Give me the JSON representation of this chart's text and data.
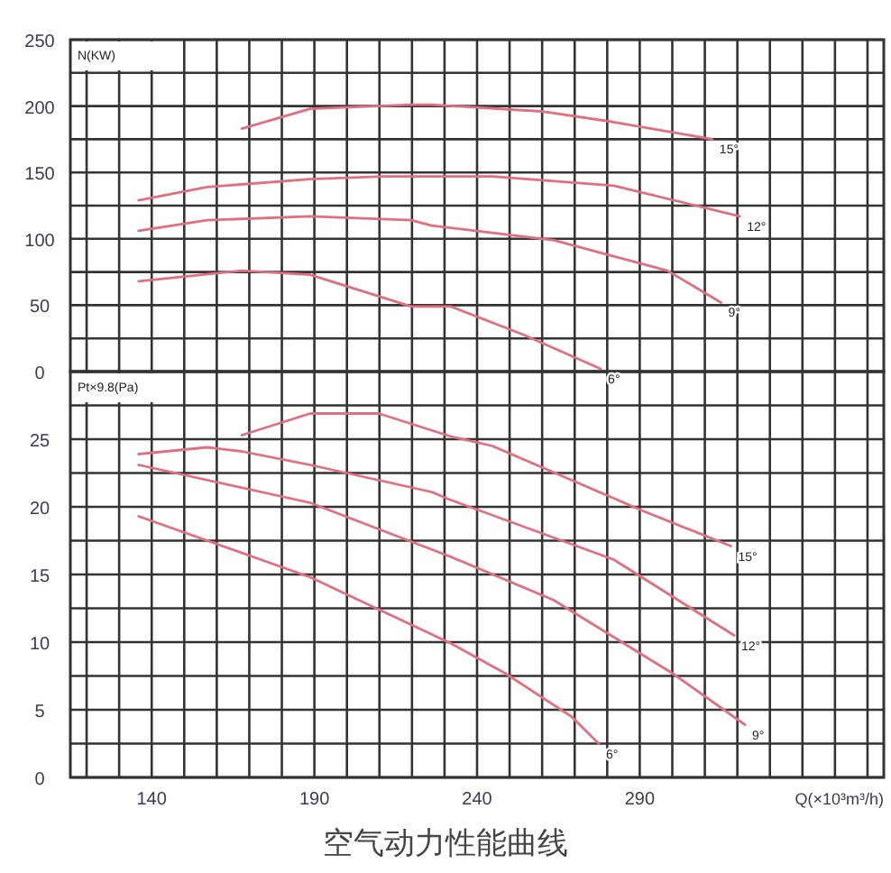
{
  "chart_data": [
    {
      "type": "line",
      "ylabel": "N(KW)",
      "xlim": [
        115,
        365
      ],
      "ylim": [
        0,
        250
      ],
      "grid": true,
      "tick_labels": "y",
      "xticks": [
        {
          "value": 120,
          "label": null
        },
        {
          "value": 130,
          "label": null
        },
        {
          "value": 140,
          "label": null
        },
        {
          "value": 150,
          "label": null
        },
        {
          "value": 160,
          "label": null
        },
        {
          "value": 170,
          "label": null
        },
        {
          "value": 180,
          "label": null
        },
        {
          "value": 190,
          "label": null
        },
        {
          "value": 200,
          "label": null
        },
        {
          "value": 210,
          "label": null
        },
        {
          "value": 220,
          "label": null
        },
        {
          "value": 230,
          "label": null
        },
        {
          "value": 240,
          "label": null
        },
        {
          "value": 250,
          "label": null
        },
        {
          "value": 260,
          "label": null
        },
        {
          "value": 270,
          "label": null
        },
        {
          "value": 280,
          "label": null
        },
        {
          "value": 290,
          "label": null
        },
        {
          "value": 300,
          "label": null
        },
        {
          "value": 310,
          "label": null
        },
        {
          "value": 320,
          "label": null
        },
        {
          "value": 330,
          "label": null
        },
        {
          "value": 340,
          "label": null
        },
        {
          "value": 350,
          "label": null
        },
        {
          "value": 360,
          "label": null
        }
      ],
      "yticks": [
        0,
        {
          "value": 25,
          "label": null
        },
        50,
        {
          "value": 75,
          "label": null
        },
        100,
        {
          "value": 125,
          "label": null
        },
        150,
        {
          "value": 175,
          "label": null
        },
        200,
        {
          "value": 225,
          "label": null
        },
        250
      ],
      "series": [
        {
          "name": "15°",
          "color": "#e07080",
          "x": [
            167.7,
            188.7,
            219.8,
            226,
            259.7,
            281.9,
            312.3
          ],
          "values": [
            183,
            198,
            201,
            201,
            196,
            188,
            175
          ]
        },
        {
          "name": "12°",
          "color": "#e07080",
          "x": [
            136,
            157,
            188.7,
            211,
            244.7,
            282,
            320.7
          ],
          "values": [
            129,
            139,
            145,
            147,
            147,
            140,
            117
          ]
        },
        {
          "name": "9°",
          "color": "#e07080",
          "x": [
            136,
            157,
            188.7,
            219.8,
            226,
            263.6,
            298.5,
            315
          ],
          "values": [
            106,
            114,
            117,
            114,
            110,
            99,
            76,
            52
          ]
        },
        {
          "name": "6°",
          "color": "#e07080",
          "x": [
            136,
            167.7,
            188.7,
            219.8,
            232,
            254,
            278
          ],
          "values": [
            68,
            76,
            73,
            49,
            49,
            28,
            2
          ]
        }
      ]
    },
    {
      "type": "line",
      "ylabel": "Pt×9.8(Pa)",
      "xlabel": "Q(×10³m³/h)",
      "title": "空气动力性能曲线",
      "xlim": [
        115,
        365
      ],
      "ylim": [
        0,
        30
      ],
      "grid": true,
      "xticks": [
        {
          "value": 120,
          "label": null
        },
        {
          "value": 130,
          "label": null
        },
        140,
        {
          "value": 150,
          "label": null
        },
        {
          "value": 160,
          "label": null
        },
        {
          "value": 170,
          "label": null
        },
        {
          "value": 180,
          "label": null
        },
        190,
        {
          "value": 200,
          "label": null
        },
        {
          "value": 210,
          "label": null
        },
        {
          "value": 220,
          "label": null
        },
        {
          "value": 230,
          "label": null
        },
        240,
        {
          "value": 250,
          "label": null
        },
        {
          "value": 260,
          "label": null
        },
        {
          "value": 270,
          "label": null
        },
        {
          "value": 280,
          "label": null
        },
        290,
        {
          "value": 300,
          "label": null
        },
        {
          "value": 310,
          "label": null
        },
        {
          "value": 320,
          "label": null
        },
        {
          "value": 330,
          "label": null
        },
        {
          "value": 340,
          "label": null
        },
        {
          "value": 350,
          "label": null
        },
        {
          "value": 360,
          "label": null
        }
      ],
      "yticks": [
        0,
        {
          "value": 2.5,
          "label": null
        },
        5,
        {
          "value": 7.5,
          "label": null
        },
        10,
        {
          "value": 12.5,
          "label": null
        },
        15,
        {
          "value": 17.5,
          "label": null
        },
        20,
        {
          "value": 22.5,
          "label": null
        },
        25,
        {
          "value": 27.5,
          "label": null
        },
        {
          "value": 30,
          "label": null
        }
      ],
      "series": [
        {
          "name": "15°",
          "color": "#e07080",
          "x": [
            167.7,
            188.7,
            209.8,
            232,
            244.7,
            291,
            318
          ],
          "values": [
            25.3,
            26.9,
            26.9,
            25.2,
            24.5,
            19.7,
            17.1
          ]
        },
        {
          "name": "12°",
          "color": "#e07080",
          "x": [
            136,
            157,
            167.7,
            188.7,
            226,
            232,
            282,
            319
          ],
          "values": [
            23.9,
            24.4,
            24.1,
            23.1,
            21.1,
            20.5,
            16.1,
            10.5
          ]
        },
        {
          "name": "9°",
          "color": "#e07080",
          "x": [
            136,
            188.7,
            232,
            263.6,
            300,
            322.3
          ],
          "values": [
            23.1,
            20.3,
            16.3,
            13.1,
            7.7,
            3.9
          ]
        },
        {
          "name": "6°",
          "color": "#e07080",
          "x": [
            136,
            188.7,
            232,
            248.6,
            269,
            277.4
          ],
          "values": [
            19.3,
            14.8,
            9.9,
            7.7,
            4.5,
            2.5
          ]
        }
      ]
    }
  ]
}
